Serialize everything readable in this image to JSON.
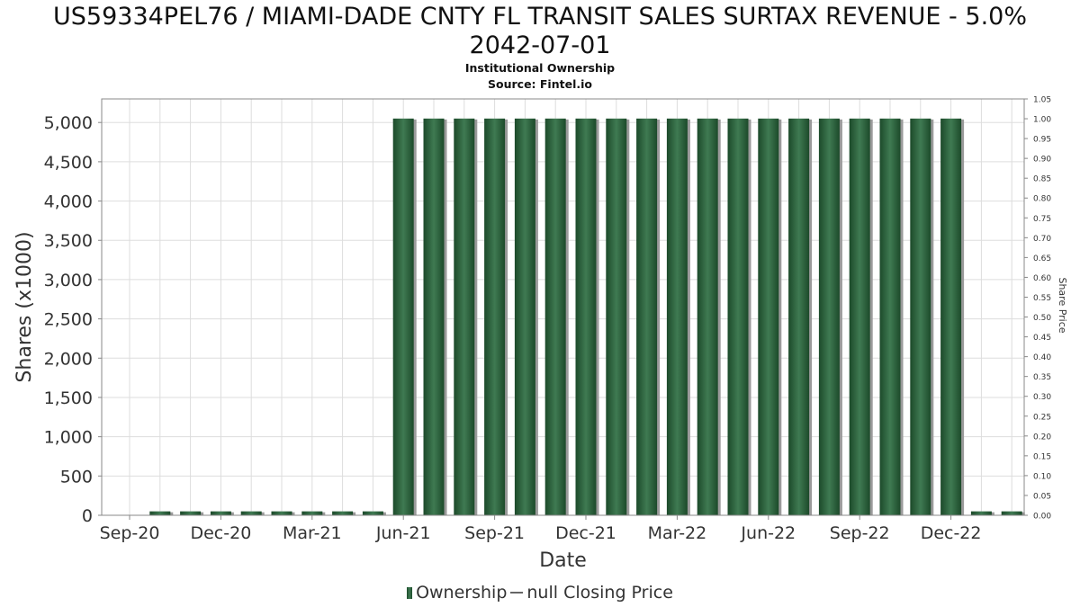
{
  "header": {
    "title_line1": "US59334PEL76 / MIAMI-DADE CNTY FL TRANSIT SALES SURTAX REVENUE - 5.0%",
    "title_line2": "2042-07-01",
    "subtitle1": "Institutional Ownership",
    "subtitle2": "Source: Fintel.io"
  },
  "legend": {
    "ownership_label": "Ownership",
    "price_label": "null Closing Price"
  },
  "colors": {
    "bar_dark": "#1c4a2a",
    "bar_light": "#3f7a52",
    "bar_shadow": "#9a9a9a",
    "grid": "#dddddd",
    "frame": "#888888"
  },
  "chart_data": {
    "type": "bar",
    "xlabel": "Date",
    "ylabel": "Shares (x1000)",
    "y2label": "Share Price",
    "ylim": [
      0,
      5300
    ],
    "y2lim": [
      0,
      1.05
    ],
    "yticks": [
      0,
      500,
      1000,
      1500,
      2000,
      2500,
      3000,
      3500,
      4000,
      4500,
      5000
    ],
    "ytick_labels": [
      "0",
      "500",
      "1,000",
      "1,500",
      "2,000",
      "2,500",
      "3,000",
      "3,500",
      "4,000",
      "4,500",
      "5,000"
    ],
    "y2tick_labels": [
      "0.00",
      "0.05",
      "0.10",
      "0.15",
      "0.20",
      "0.25",
      "0.30",
      "0.35",
      "0.40",
      "0.45",
      "0.50",
      "0.55",
      "0.60",
      "0.65",
      "0.70",
      "0.75",
      "0.80",
      "0.85",
      "0.90",
      "0.95",
      "1.00",
      "1.05"
    ],
    "xtick_labels": [
      "Sep-20",
      "Dec-20",
      "Mar-21",
      "Jun-21",
      "Sep-21",
      "Dec-21",
      "Mar-22",
      "Jun-22",
      "Sep-22",
      "Dec-22"
    ],
    "grid": true,
    "legend_position": "bottom",
    "series": [
      {
        "name": "Ownership",
        "values": [
          50,
          50,
          50,
          50,
          50,
          50,
          50,
          50,
          5050,
          5050,
          5050,
          5050,
          5050,
          5050,
          5050,
          5050,
          5050,
          5050,
          5050,
          5050,
          5050,
          5050,
          5050,
          5050,
          5050,
          5050,
          5050,
          50,
          50
        ]
      }
    ]
  }
}
